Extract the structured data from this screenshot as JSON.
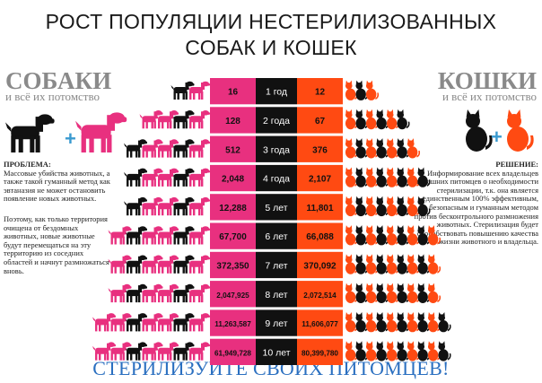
{
  "title_line1": "РОСТ ПОПУЛЯЦИИ НЕСТЕРИЛИЗОВАННЫХ",
  "title_line2": "СОБАК И КОШЕК",
  "dogs": {
    "heading": "СОБАКИ",
    "subheading": "и всё их потомство",
    "problem_label": "ПРОБЛЕМА:",
    "problem_text": "Массовые убийства животных, а также такой гуманный метод как эвтаназия не может остановить появление новых животных.",
    "problem_text2": "Поэтому, как только территория очищена от бездомных животных, новые животные будут перемещаться на эту территорию из соседних областей и начнут размножаться вновь."
  },
  "cats": {
    "heading": "КОШКИ",
    "subheading": "и всё их потомство",
    "solution_label": "РЕШЕНИЕ:",
    "solution_text": "Информирование всех владельцев домашних питомцев о необходимости стерилизации, т.к. она является единственным 100% эффективным, безопасным и гуманным методом против бесконтрольного размножения животных. Стерилизация будет способствовать повышению качества жизни животного и владельца."
  },
  "footer": "СТЕРИЛИЗУЙТЕ СВОИХ ПИТОМЦЕВ!",
  "colors": {
    "dog_pink": "#e8307f",
    "dog_black": "#111111",
    "cat_orange": "#ff4a12",
    "cat_black": "#111111",
    "year_bg": "#111111",
    "footer_blue": "#2a6fc0",
    "heading_gray": "#8a8a8a"
  },
  "chart_data": {
    "type": "table",
    "title": "РОСТ ПОПУЛЯЦИИ НЕСТЕРИЛИЗОВАННЫХ СОБАК И КОШЕК",
    "categories": [
      "1 год",
      "2 года",
      "3 года",
      "4 года",
      "5 лет",
      "6 лет",
      "7 лет",
      "8 лет",
      "9 лет",
      "10 лет"
    ],
    "series": [
      {
        "name": "СОБАКИ",
        "values": [
          16,
          128,
          512,
          2048,
          12288,
          67700,
          372350,
          2047925,
          11263587,
          61949728
        ],
        "labels": [
          "16",
          "128",
          "512",
          "2,048",
          "12,288",
          "67,700",
          "372,350",
          "2,047,925",
          "11,263,587",
          "61,949,728"
        ]
      },
      {
        "name": "КОШКИ",
        "values": [
          12,
          67,
          376,
          2107,
          11801,
          66088,
          370092,
          2072514,
          11606077,
          80399780
        ],
        "labels": [
          "12",
          "67",
          "376",
          "2,107",
          "11,801",
          "66,088",
          "370,092",
          "2,072,514",
          "11,606,077",
          "80,399,780"
        ]
      }
    ]
  }
}
